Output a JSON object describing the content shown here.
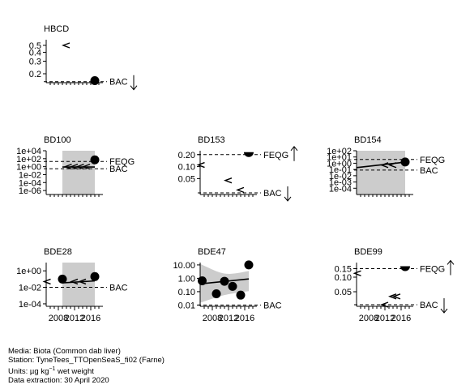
{
  "chart_data": [
    {
      "type": "scatter",
      "title": "HBCD",
      "log_y": true,
      "ylim": [
        0.15,
        0.6
      ],
      "yticks": [
        0.2,
        0.3,
        0.4,
        0.5
      ],
      "ytick_labels": [
        "0.2",
        "0.3",
        "0.4",
        "0.5"
      ],
      "xlim": [
        2005,
        2019
      ],
      "xticks": [],
      "xtick_labels": [],
      "shade": null,
      "trend": null,
      "points": [
        {
          "x": 2017,
          "y": 0.16,
          "kind": "dot"
        }
      ],
      "less_than": [
        {
          "x": 2010,
          "y": 0.5
        }
      ],
      "reference_lines": [
        {
          "label": "BAC",
          "y": 0.155,
          "arrow": "down"
        }
      ]
    },
    {
      "type": "scatter",
      "title": "BD100",
      "log_y": true,
      "ylim": [
        1e-07,
        10000
      ],
      "yticks": [
        1e-06,
        0.0001,
        0.01,
        1,
        100,
        10000
      ],
      "ytick_labels": [
        "1e-06",
        "1e-04",
        "1e-02",
        "1e+00",
        "1e+02",
        "1e+04"
      ],
      "xlim": [
        2005,
        2019
      ],
      "xticks": [],
      "xtick_labels": [],
      "shade": [
        2009,
        2017
      ],
      "trend": [
        {
          "x": 2009,
          "y": 0.8
        },
        {
          "x": 2017,
          "y": 0.8
        }
      ],
      "points": [
        {
          "x": 2017,
          "y": 50,
          "kind": "dot"
        }
      ],
      "less_than": [
        {
          "x": 2010.5,
          "y": 1
        },
        {
          "x": 2012,
          "y": 1
        },
        {
          "x": 2013.5,
          "y": 1
        },
        {
          "x": 2015,
          "y": 1
        }
      ],
      "reference_lines": [
        {
          "label": "FEQG",
          "y": 20,
          "arrow": ""
        },
        {
          "label": "BAC",
          "y": 0.3,
          "arrow": ""
        }
      ]
    },
    {
      "type": "scatter",
      "title": "BD153",
      "log_y": true,
      "ylim": [
        0.02,
        0.25
      ],
      "yticks": [
        0.05,
        0.1,
        0.2
      ],
      "ytick_labels": [
        "0.05",
        "0.10",
        "0.20"
      ],
      "xlim": [
        2005,
        2019
      ],
      "xticks": [],
      "xtick_labels": [],
      "shade": null,
      "trend": null,
      "points": [
        {
          "x": 2017,
          "y": 0.2,
          "kind": "half"
        }
      ],
      "less_than": [
        {
          "x": 2005.3,
          "y": 0.11
        },
        {
          "x": 2012,
          "y": 0.045
        },
        {
          "x": 2015,
          "y": 0.026
        }
      ],
      "reference_lines": [
        {
          "label": "FEQG",
          "y": 0.2,
          "arrow": "up"
        },
        {
          "label": "BAC",
          "y": 0.022,
          "arrow": "down"
        }
      ]
    },
    {
      "type": "scatter",
      "title": "BD154",
      "log_y": true,
      "ylim": [
        1e-05,
        100
      ],
      "yticks": [
        0.0001,
        0.001,
        0.01,
        0.1,
        1,
        10,
        100
      ],
      "ytick_labels": [
        "1e-04",
        "1e-03",
        "1e-02",
        "1e-01",
        "1e+00",
        "1e+01",
        "1e+02"
      ],
      "xlim": [
        2005,
        2019
      ],
      "xticks": [],
      "xtick_labels": [],
      "shade": [
        2005,
        2017
      ],
      "trend": [
        {
          "x": 2005,
          "y": 0.2
        },
        {
          "x": 2017,
          "y": 1.5
        }
      ],
      "points": [
        {
          "x": 2017,
          "y": 1.6,
          "kind": "dot"
        }
      ],
      "less_than": [
        {
          "x": 2012,
          "y": 0.5
        },
        {
          "x": 2014,
          "y": 0.5
        }
      ],
      "reference_lines": [
        {
          "label": "FEQG",
          "y": 4,
          "arrow": ""
        },
        {
          "label": "BAC",
          "y": 0.08,
          "arrow": ""
        }
      ]
    },
    {
      "type": "scatter",
      "title": "BDE28",
      "log_y": true,
      "ylim": [
        5e-05,
        10
      ],
      "yticks": [
        0.0001,
        0.01,
        1
      ],
      "ytick_labels": [
        "1e-04",
        "1e-02",
        "1e+00"
      ],
      "xlim": [
        2005,
        2019
      ],
      "xticks": [
        2008,
        2012,
        2016
      ],
      "xtick_labels": [
        "2008",
        "2012",
        "2016"
      ],
      "shade": [
        2009,
        2017
      ],
      "trend": [
        {
          "x": 2009,
          "y": 0.035
        },
        {
          "x": 2017,
          "y": 0.06
        }
      ],
      "points": [
        {
          "x": 2009,
          "y": 0.1,
          "kind": "dot"
        },
        {
          "x": 2017,
          "y": 0.2,
          "kind": "dot"
        }
      ],
      "less_than": [
        {
          "x": 2005.3,
          "y": 0.05
        },
        {
          "x": 2012,
          "y": 0.05
        },
        {
          "x": 2014,
          "y": 0.05
        }
      ],
      "reference_lines": [
        {
          "label": "BAC",
          "y": 0.01,
          "arrow": ""
        }
      ]
    },
    {
      "type": "scatter",
      "title": "BDE47",
      "log_y": true,
      "ylim": [
        0.008,
        15
      ],
      "yticks": [
        0.01,
        0.1,
        1,
        10
      ],
      "ytick_labels": [
        "0.01",
        "0.10",
        "1.00",
        "10.00"
      ],
      "xlim": [
        2005,
        2019
      ],
      "xticks": [
        2008,
        2012,
        2016
      ],
      "xtick_labels": [
        "2008",
        "2012",
        "2016"
      ],
      "shade": [
        2005,
        2017
      ],
      "shade_band": {
        "low": [
          0.015,
          0.11
        ],
        "high": [
          12,
          3.5
        ]
      },
      "trend": [
        {
          "x": 2005,
          "y": 0.38
        },
        {
          "x": 2017,
          "y": 0.9
        }
      ],
      "points": [
        {
          "x": 2005.5,
          "y": 0.65,
          "kind": "dot"
        },
        {
          "x": 2009,
          "y": 0.07,
          "kind": "dot"
        },
        {
          "x": 2011,
          "y": 0.6,
          "kind": "dot"
        },
        {
          "x": 2013,
          "y": 0.25,
          "kind": "dot"
        },
        {
          "x": 2015,
          "y": 0.055,
          "kind": "dot"
        },
        {
          "x": 2017,
          "y": 10,
          "kind": "dot"
        }
      ],
      "less_than": [],
      "reference_lines": [
        {
          "label": "BAC",
          "y": 0.01,
          "arrow": ""
        }
      ]
    },
    {
      "type": "scatter",
      "title": "BDE99",
      "log_y": true,
      "ylim": [
        0.025,
        0.2
      ],
      "yticks": [
        0.05,
        0.1,
        0.15
      ],
      "ytick_labels": [
        "0.05",
        "0.10",
        "0.15"
      ],
      "xlim": [
        2005,
        2019
      ],
      "xticks": [
        2008,
        2012,
        2016
      ],
      "xtick_labels": [
        "2008",
        "2012",
        "2016"
      ],
      "shade": null,
      "trend": null,
      "points": [
        {
          "x": 2017,
          "y": 0.15,
          "kind": "half"
        }
      ],
      "less_than": [
        {
          "x": 2005.3,
          "y": 0.12
        },
        {
          "x": 2012,
          "y": 0.027
        },
        {
          "x": 2014,
          "y": 0.04
        },
        {
          "x": 2015,
          "y": 0.04
        }
      ],
      "reference_lines": [
        {
          "label": "FEQG",
          "y": 0.15,
          "arrow": "up"
        },
        {
          "label": "BAC",
          "y": 0.027,
          "arrow": "down"
        }
      ]
    }
  ],
  "footer": {
    "media": "Media: Biota (Common dab liver)",
    "station": "Station: TyneTees_TTOpenSeaS_fi02 (Farne)",
    "units_prefix": "Units:  µg kg",
    "units_sup": "−1",
    "units_suffix": " wet weight",
    "extraction": "Data extraction: 30 April 2020"
  }
}
